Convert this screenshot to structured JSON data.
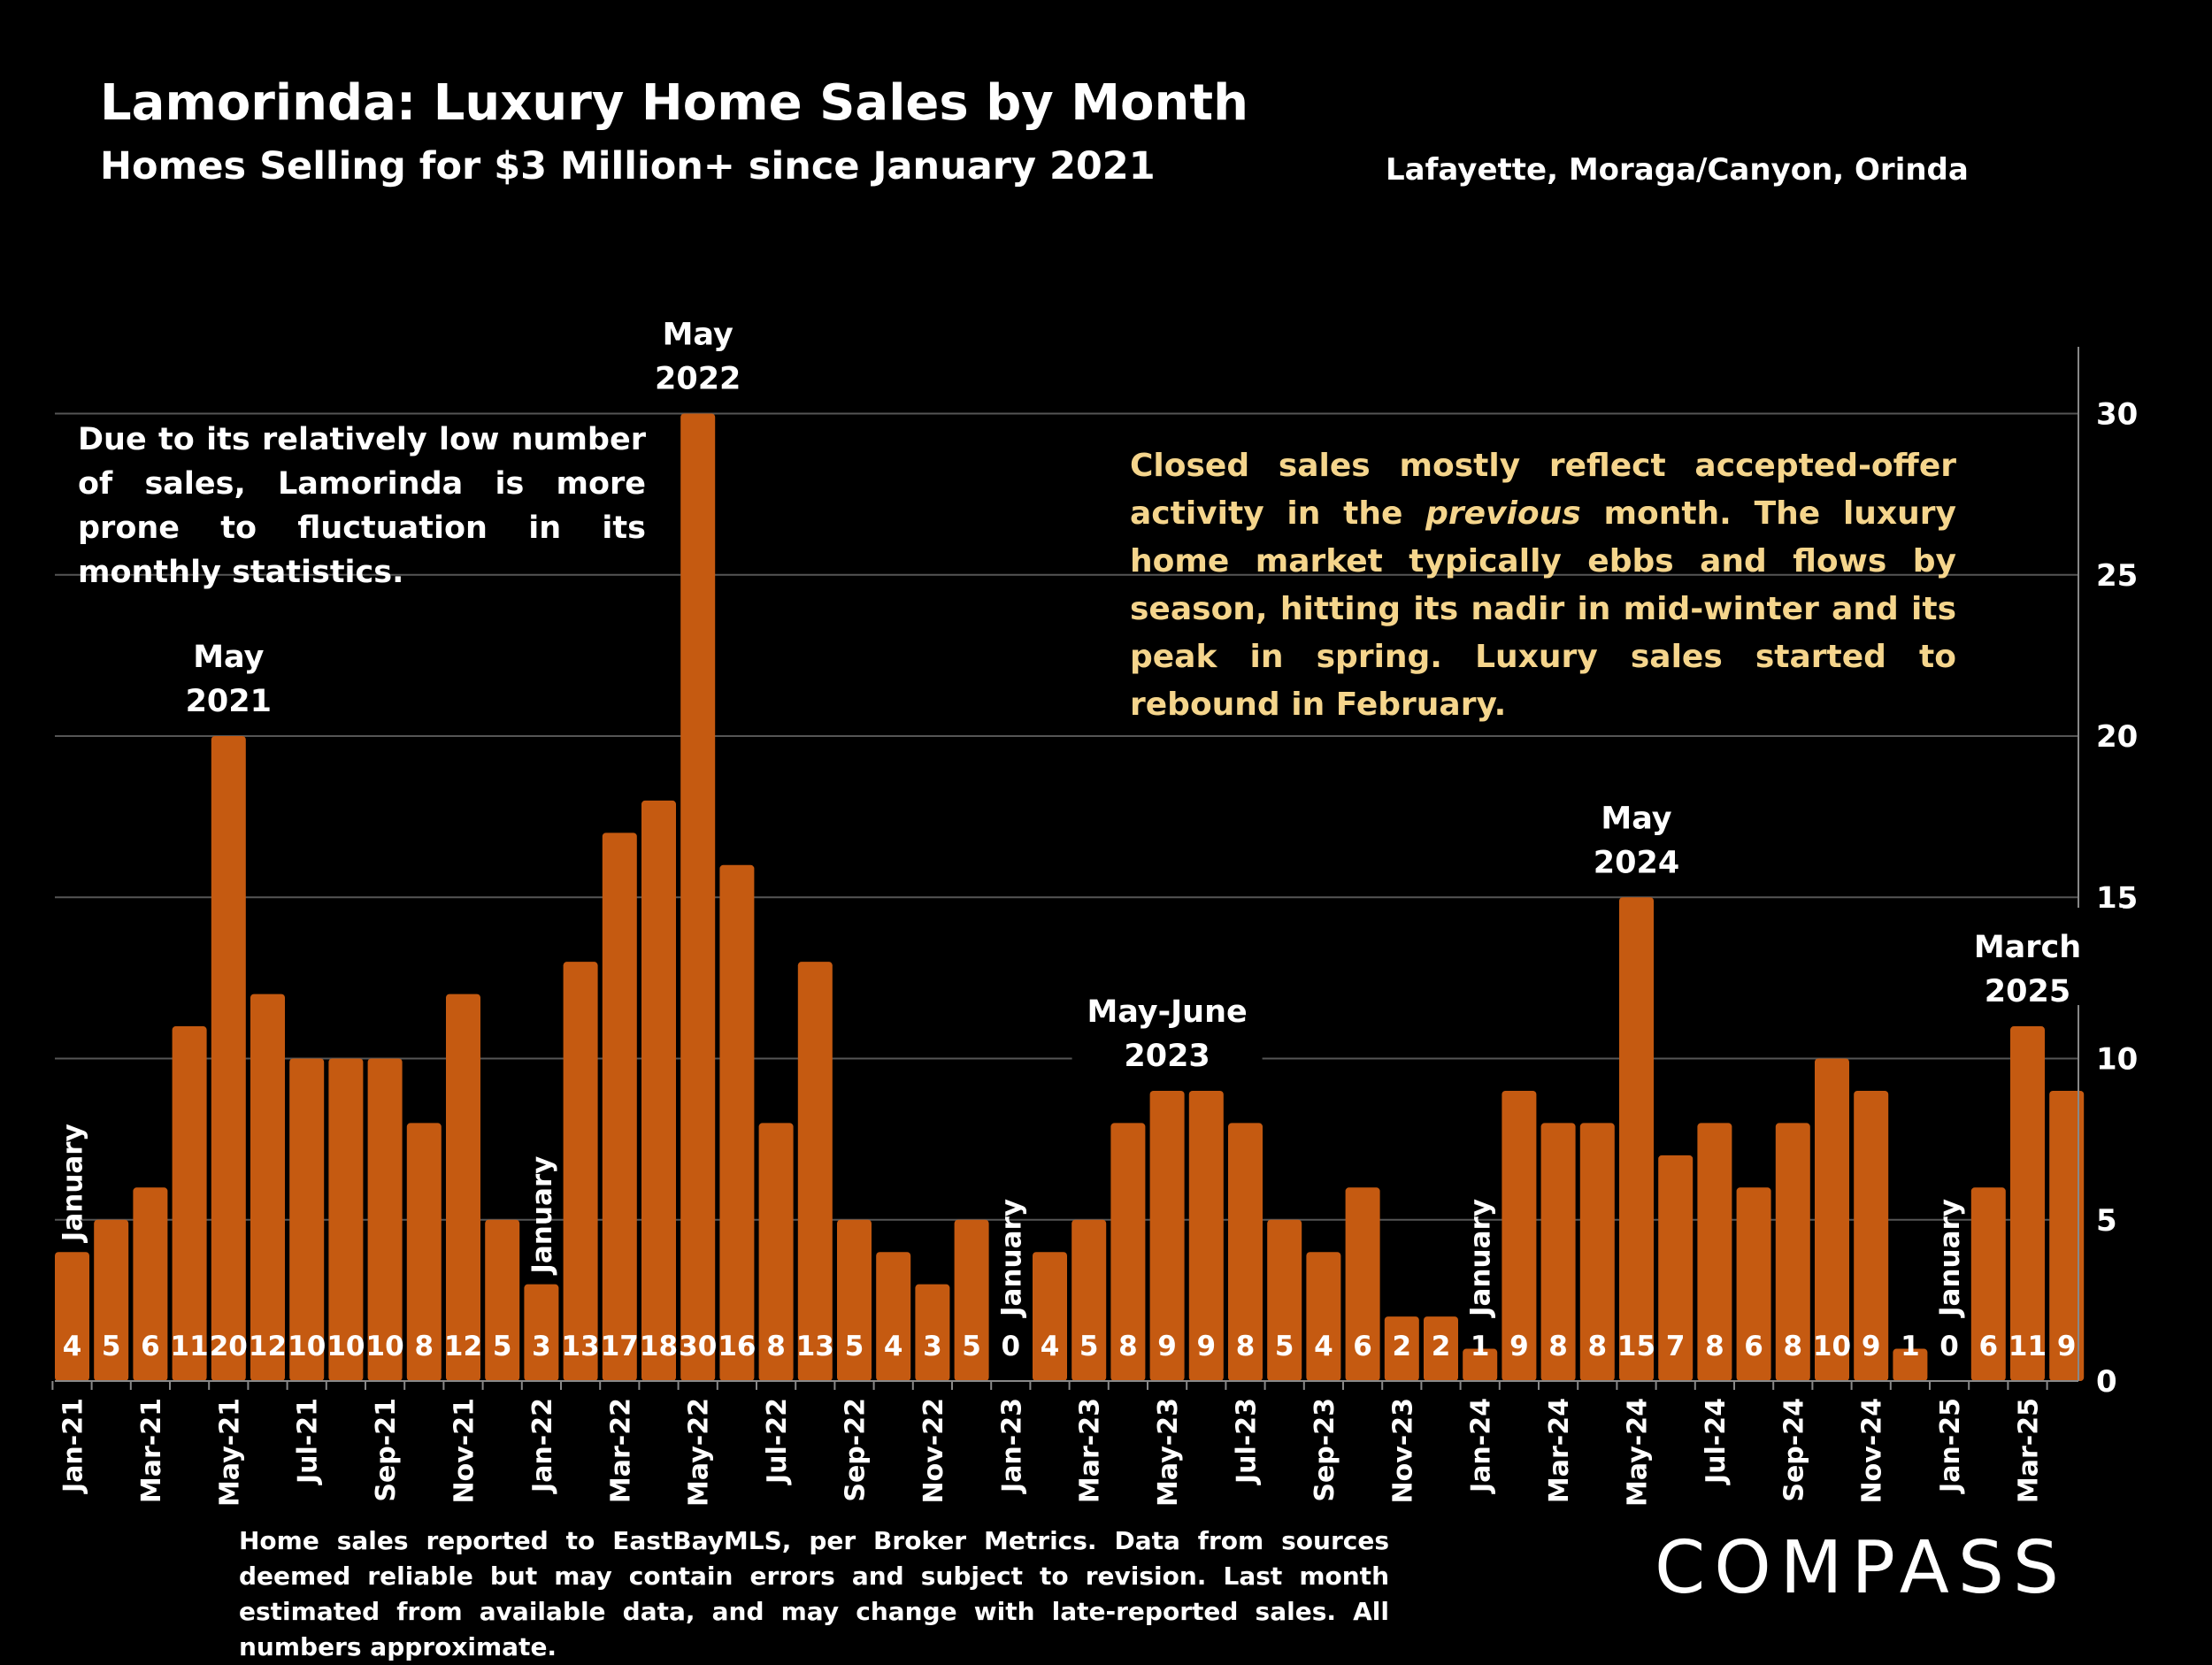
{
  "header": {
    "title": "Lamorinda:  Luxury Home Sales by Month",
    "subtitle": "Homes Selling for $3 Million+ since January 2021",
    "region": "Lafayette, Moraga/Canyon, Orinda"
  },
  "notes": {
    "left": "Due to its relatively low number of sales, Lamorinda is more prone to fluctuation in its monthly statistics.",
    "right_before": "Closed sales mostly reflect accepted-offer activity in the ",
    "right_em": "previous",
    "right_after": " month. The luxury home market typically ebbs and flows by season, hitting its nadir in mid-winter and its peak in spring.  Luxury sales started to rebound in February."
  },
  "footnote": "Home sales reported to EastBayMLS, per Broker Metrics. Data from sources deemed reliable but may contain errors and subject to revision.  Last month estimated from available data, and may change with late-reported sales. All numbers approximate.",
  "logo": "COMPASS",
  "colors": {
    "bar": "#C55A11",
    "note": "#F5D58C",
    "background": "#000000"
  },
  "chart_data": {
    "type": "bar",
    "categories": [
      "Jan-21",
      "Feb-21",
      "Mar-21",
      "Apr-21",
      "May-21",
      "Jun-21",
      "Jul-21",
      "Aug-21",
      "Sep-21",
      "Oct-21",
      "Nov-21",
      "Dec-21",
      "Jan-22",
      "Feb-22",
      "Mar-22",
      "Apr-22",
      "May-22",
      "Jun-22",
      "Jul-22",
      "Aug-22",
      "Sep-22",
      "Oct-22",
      "Nov-22",
      "Dec-22",
      "Jan-23",
      "Feb-23",
      "Mar-23",
      "Apr-23",
      "May-23",
      "Jun-23",
      "Jul-23",
      "Aug-23",
      "Sep-23",
      "Oct-23",
      "Nov-23",
      "Dec-23",
      "Jan-24",
      "Feb-24",
      "Mar-24",
      "Apr-24",
      "May-24",
      "Jun-24",
      "Jul-24",
      "Aug-24",
      "Sep-24",
      "Oct-24",
      "Nov-24",
      "Dec-24",
      "Jan-25",
      "Feb-25",
      "Mar-25",
      "Apr-25"
    ],
    "tick_labels": [
      "Jan-21",
      "Mar-21",
      "May-21",
      "Jul-21",
      "Sep-21",
      "Nov-21",
      "Jan-22",
      "Mar-22",
      "May-22",
      "Jul-22",
      "Sep-22",
      "Nov-22",
      "Jan-23",
      "Mar-23",
      "May-23",
      "Jul-23",
      "Sep-23",
      "Nov-23",
      "Jan-24",
      "Mar-24",
      "May-24",
      "Jul-24",
      "Sep-24",
      "Nov-24",
      "Jan-25",
      "Mar-25"
    ],
    "values": [
      4,
      5,
      6,
      11,
      20,
      12,
      10,
      10,
      10,
      8,
      12,
      5,
      3,
      13,
      17,
      18,
      30,
      16,
      8,
      13,
      5,
      4,
      3,
      5,
      0,
      4,
      5,
      8,
      9,
      9,
      8,
      5,
      4,
      6,
      2,
      2,
      1,
      9,
      8,
      8,
      15,
      7,
      8,
      6,
      8,
      10,
      9,
      1,
      0,
      6,
      11,
      9
    ],
    "ylim": [
      0,
      32
    ],
    "yticks": [
      0,
      5,
      10,
      15,
      20,
      25,
      30
    ],
    "y_axis_side": "right",
    "grid": true,
    "annotations": [
      {
        "index": 0,
        "text": "January",
        "rotated": true
      },
      {
        "index": 4,
        "lines": [
          "May",
          "2021"
        ]
      },
      {
        "index": 12,
        "text": "January",
        "rotated": true
      },
      {
        "index": 16,
        "lines": [
          "May",
          "2022"
        ]
      },
      {
        "index": 24,
        "text": "January",
        "rotated": true
      },
      {
        "index": 28,
        "lines": [
          "May-June",
          "2023"
        ]
      },
      {
        "index": 36,
        "text": "January",
        "rotated": true
      },
      {
        "index": 40,
        "lines": [
          "May",
          "2024"
        ]
      },
      {
        "index": 48,
        "text": "January",
        "rotated": true
      },
      {
        "index": 50,
        "lines": [
          "March",
          "2025"
        ]
      }
    ]
  }
}
